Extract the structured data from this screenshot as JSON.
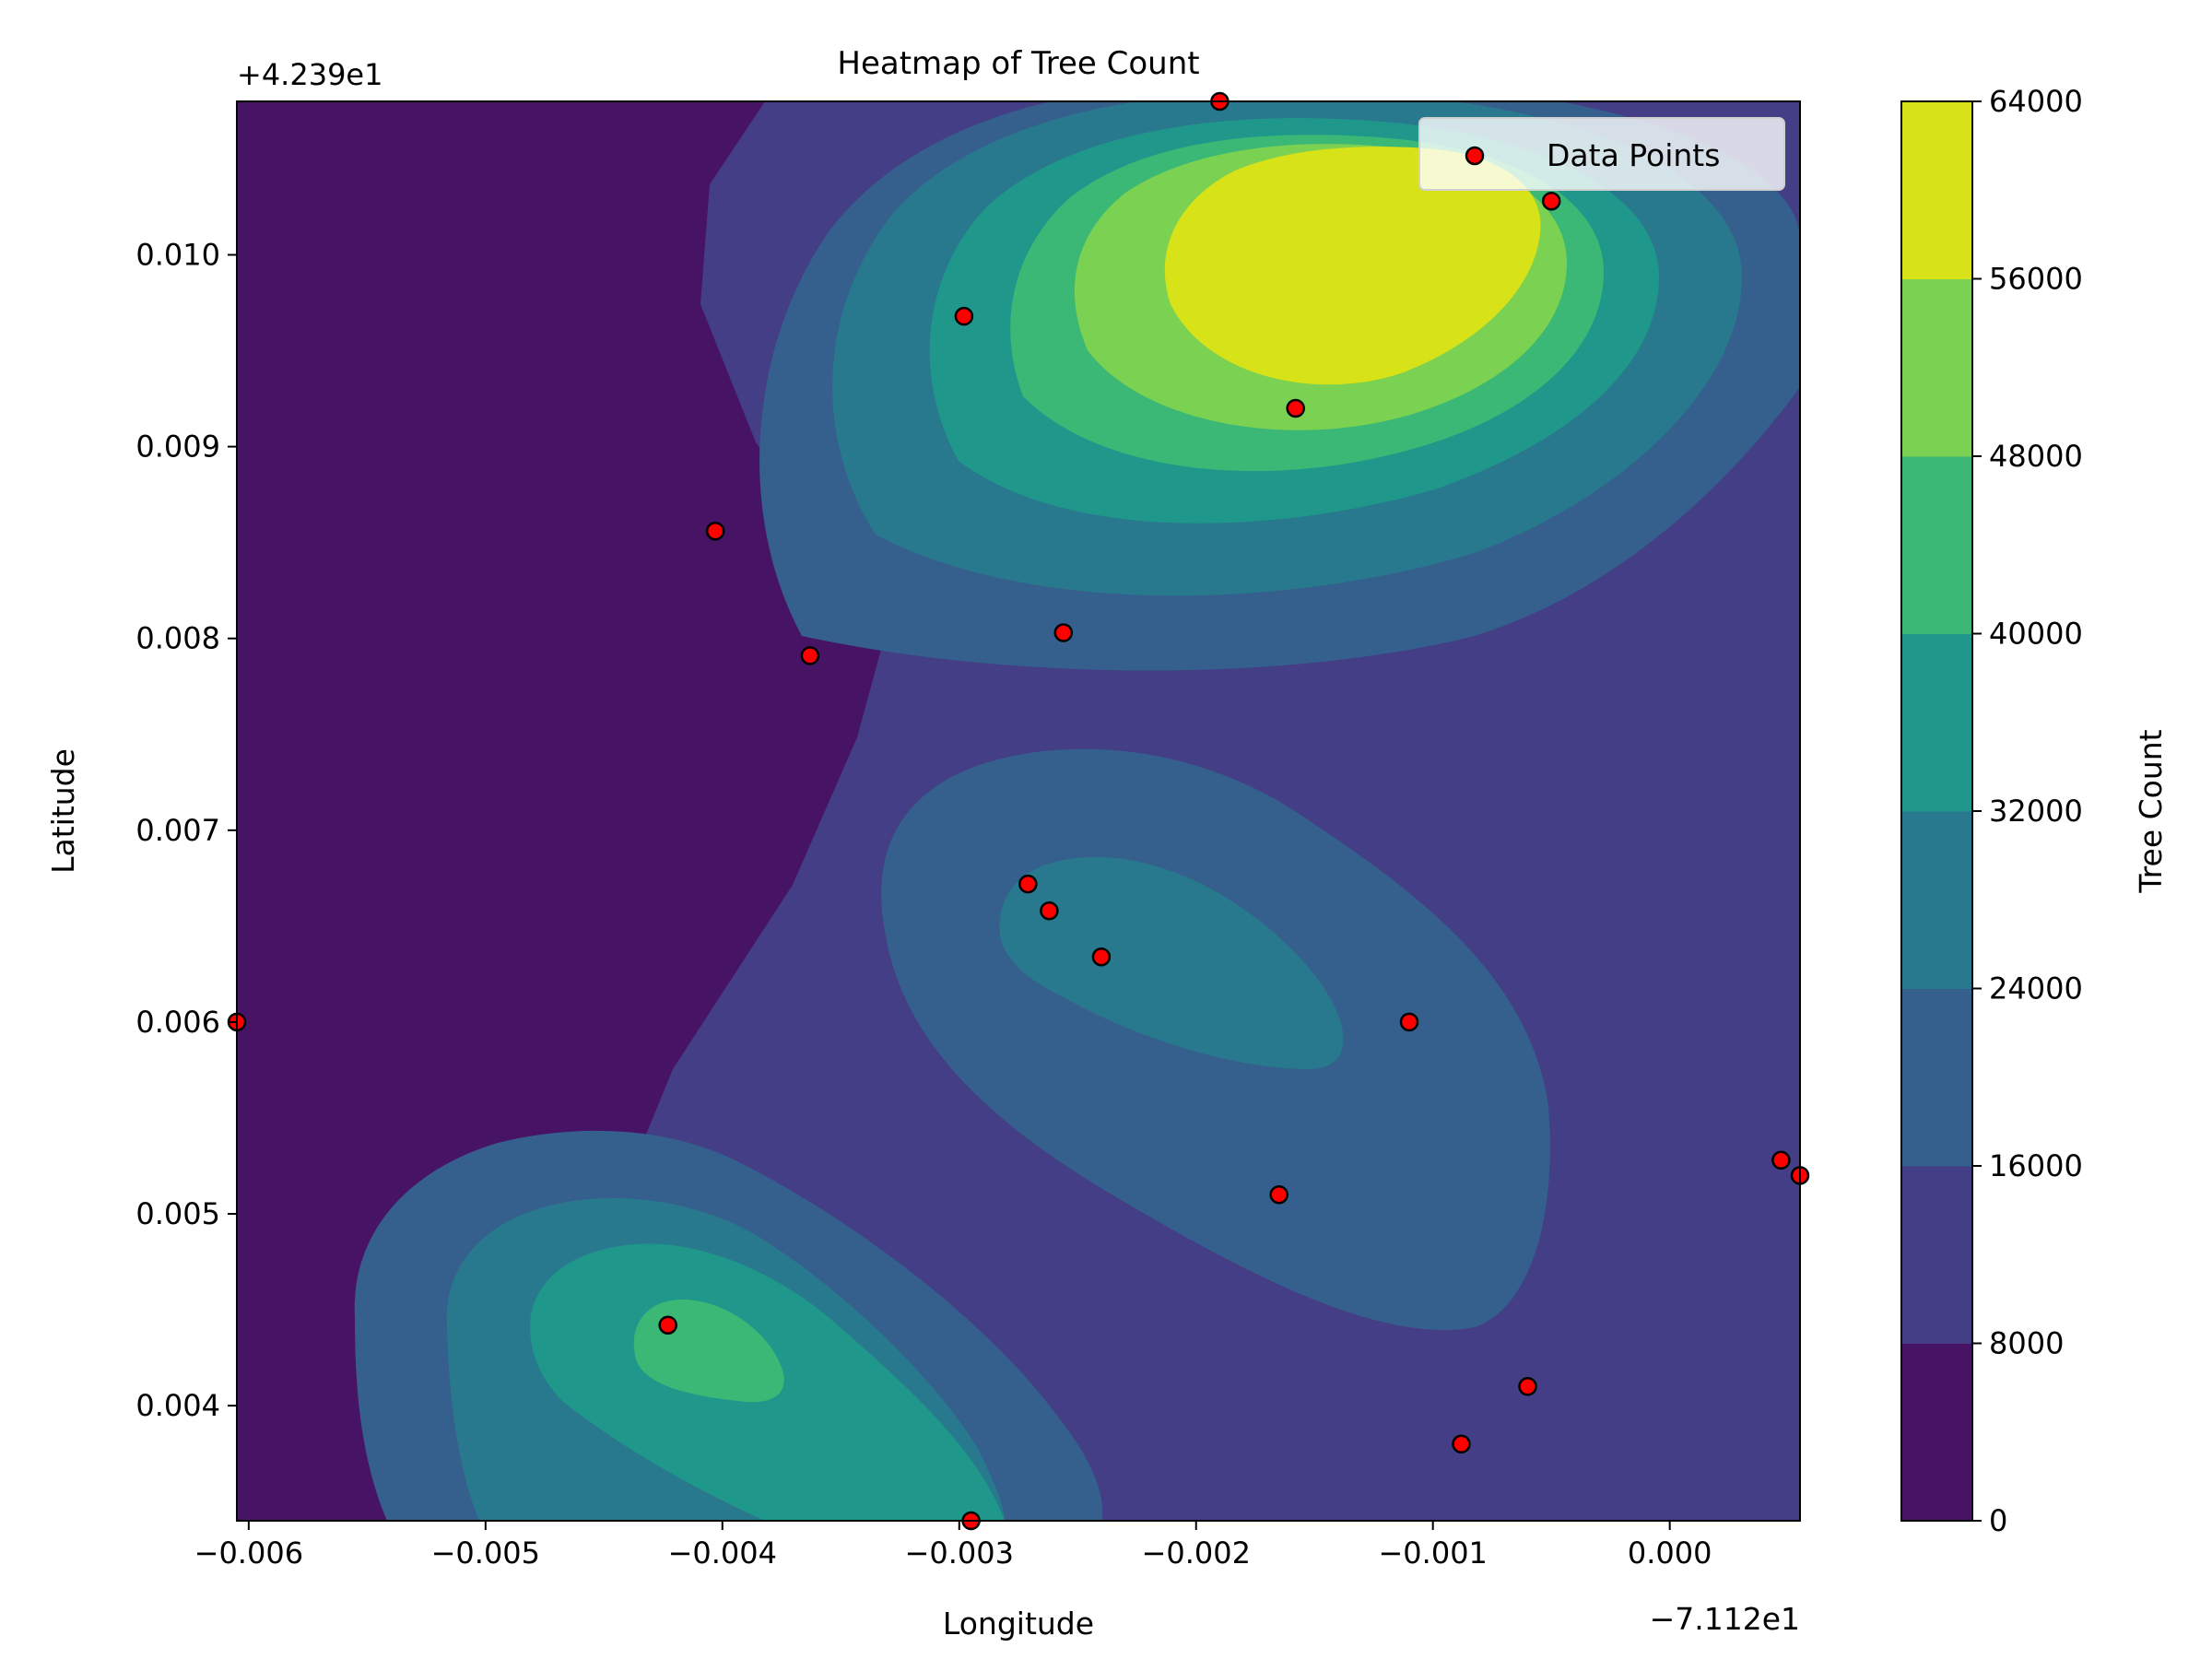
{
  "chart_data": {
    "type": "heatmap",
    "title": "Heatmap of Tree Count",
    "xlabel": "Longitude",
    "ylabel": "Latitude",
    "x_offset_label": "−7.112e1",
    "y_offset_label": "+4.239e1",
    "xlim": [
      -0.00605,
      0.00055
    ],
    "ylim": [
      0.0034,
      0.0108
    ],
    "x_ticks": [
      -0.006,
      -0.005,
      -0.004,
      -0.003,
      -0.002,
      -0.001,
      0.0
    ],
    "x_tick_labels": [
      "−0.006",
      "−0.005",
      "−0.004",
      "−0.003",
      "−0.002",
      "−0.001",
      "0.000"
    ],
    "y_ticks": [
      0.004,
      0.005,
      0.006,
      0.007,
      0.008,
      0.009,
      0.01
    ],
    "y_tick_labels": [
      "0.004",
      "0.005",
      "0.006",
      "0.007",
      "0.008",
      "0.009",
      "0.010"
    ],
    "colorbar": {
      "label": "Tree Count",
      "levels": [
        0,
        8000,
        16000,
        24000,
        32000,
        40000,
        48000,
        56000,
        64000
      ],
      "level_labels": [
        "0",
        "8000",
        "16000",
        "24000",
        "32000",
        "40000",
        "48000",
        "56000",
        "64000"
      ],
      "colors": [
        "#471365",
        "#433e85",
        "#355f8d",
        "#29798e",
        "#1f988b",
        "#3bb876",
        "#7bd151",
        "#d8e219"
      ]
    },
    "legend": {
      "label": "Data Points",
      "placement": "upper-right"
    },
    "points": [
      {
        "x": -0.0019,
        "y": 0.0108
      },
      {
        "x": -0.0005,
        "y": 0.01028
      },
      {
        "x": -0.00298,
        "y": 0.00968
      },
      {
        "x": -0.00158,
        "y": 0.0092
      },
      {
        "x": -0.00403,
        "y": 0.00856
      },
      {
        "x": -0.00256,
        "y": 0.00803
      },
      {
        "x": -0.00363,
        "y": 0.00791
      },
      {
        "x": -0.00271,
        "y": 0.00672
      },
      {
        "x": -0.00262,
        "y": 0.00658
      },
      {
        "x": -0.0024,
        "y": 0.00634
      },
      {
        "x": -0.0011,
        "y": 0.006
      },
      {
        "x": -0.00605,
        "y": 0.006
      },
      {
        "x": -0.00165,
        "y": 0.0051
      },
      {
        "x": 0.00047,
        "y": 0.00528
      },
      {
        "x": 0.00055,
        "y": 0.0052
      },
      {
        "x": -0.00423,
        "y": 0.00442
      },
      {
        "x": -0.0006,
        "y": 0.0041
      },
      {
        "x": -0.00088,
        "y": 0.0038
      },
      {
        "x": -0.00295,
        "y": 0.0034
      }
    ]
  }
}
